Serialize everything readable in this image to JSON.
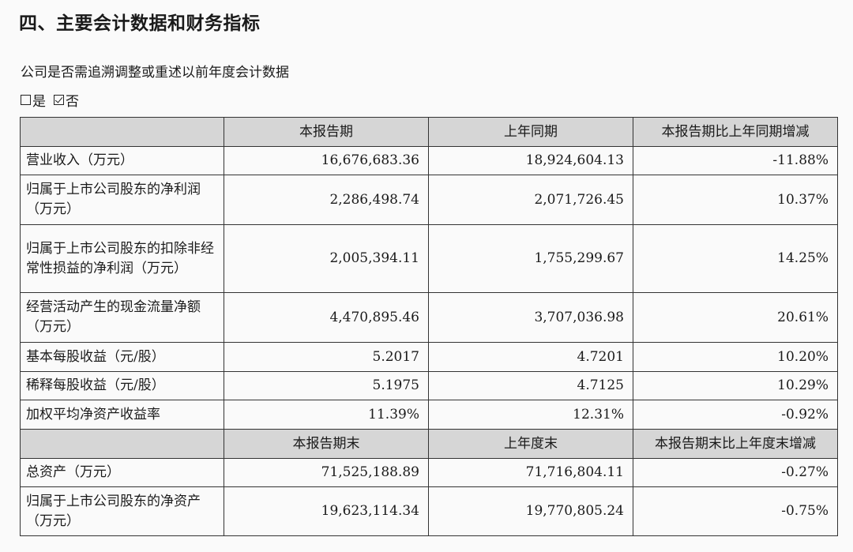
{
  "title": "四、主要会计数据和财务指标",
  "question": "公司是否需追溯调整或重述以前年度会计数据",
  "options": [
    {
      "label": "是",
      "checked": false
    },
    {
      "label": "否",
      "checked": true
    }
  ],
  "table": {
    "header1": [
      "",
      "本报告期",
      "上年同期",
      "本报告期比上年同期增减"
    ],
    "rows1": [
      {
        "label": "营业收入（万元）",
        "current": "16,676,683.36",
        "previous": "18,924,604.13",
        "change": "-11.88%"
      },
      {
        "label": "归属于上市公司股东的净利润（万元）",
        "current": "2,286,498.74",
        "previous": "2,071,726.45",
        "change": "10.37%"
      },
      {
        "label": "归属于上市公司股东的扣除非经常性损益的净利润（万元）",
        "current": "2,005,394.11",
        "previous": "1,755,299.67",
        "change": "14.25%"
      },
      {
        "label": "经营活动产生的现金流量净额（万元）",
        "current": "4,470,895.46",
        "previous": "3,707,036.98",
        "change": "20.61%"
      },
      {
        "label": "基本每股收益（元/股）",
        "current": "5.2017",
        "previous": "4.7201",
        "change": "10.20%"
      },
      {
        "label": "稀释每股收益（元/股）",
        "current": "5.1975",
        "previous": "4.7125",
        "change": "10.29%"
      },
      {
        "label": "加权平均净资产收益率",
        "current": "11.39%",
        "previous": "12.31%",
        "change": "-0.92%"
      }
    ],
    "header2": [
      "",
      "本报告期末",
      "上年度末",
      "本报告期末比上年度末增减"
    ],
    "rows2": [
      {
        "label": "总资产（万元）",
        "current": "71,525,188.89",
        "previous": "71,716,804.11",
        "change": "-0.27%"
      },
      {
        "label": "归属于上市公司股东的净资产（万元）",
        "current": "19,623,114.34",
        "previous": "19,770,805.24",
        "change": "-0.75%"
      }
    ]
  }
}
